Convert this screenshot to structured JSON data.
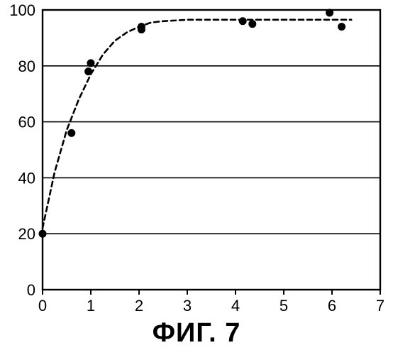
{
  "figure": {
    "caption": "ФИГ. 7"
  },
  "chart_data": {
    "type": "scatter",
    "title": "",
    "xlabel": "",
    "ylabel": "",
    "xlim": [
      0,
      7
    ],
    "ylim": [
      0,
      100
    ],
    "x_ticks": [
      "0",
      "1",
      "2",
      "3",
      "4",
      "5",
      "6",
      "7"
    ],
    "y_ticks": [
      "0",
      "20",
      "40",
      "60",
      "80",
      "100"
    ],
    "grid": "horizontal",
    "legend": "none",
    "series": [
      {
        "type": "scatter",
        "x": [
          0,
          0.6,
          0.95,
          1.0,
          2.05,
          2.05,
          4.15,
          4.35,
          5.95,
          6.2
        ],
        "y": [
          20,
          56,
          78,
          81,
          93,
          94,
          96,
          95,
          99,
          94
        ]
      },
      {
        "type": "line",
        "style": "dashed",
        "x": [
          0,
          0.25,
          0.5,
          0.75,
          1.0,
          1.25,
          1.5,
          1.75,
          2.0,
          2.25,
          2.5,
          3.0,
          3.5,
          4.0,
          5.0,
          6.0,
          6.4
        ],
        "y": [
          22,
          42,
          57,
          68,
          77,
          84,
          89,
          92,
          94,
          95.5,
          96,
          96.5,
          96.5,
          96.5,
          96.5,
          96.5,
          96.5
        ]
      }
    ],
    "colors": {
      "marker": "#000000",
      "line": "#000000",
      "axis": "#000000",
      "grid": "#000000"
    }
  }
}
